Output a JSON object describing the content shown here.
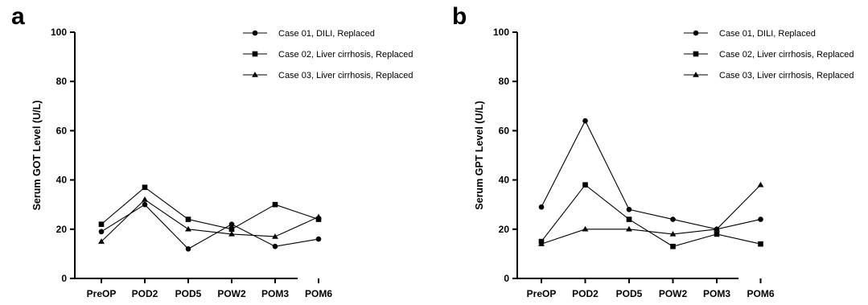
{
  "chart_data": [
    {
      "panel_label": "a",
      "type": "line",
      "title": "",
      "xlabel": "",
      "ylabel": "Serum GOT Level (U/L)",
      "ylim": [
        0,
        100
      ],
      "yticks": [
        0,
        20,
        40,
        60,
        80,
        100
      ],
      "categories": [
        "PreOP",
        "POD2",
        "POD5",
        "POW2",
        "POM3",
        "POM6"
      ],
      "legend_position": "top-right",
      "series": [
        {
          "name": "Case 01, DILI, Replaced",
          "marker": "circle",
          "values": [
            19,
            30,
            12,
            22,
            13,
            16
          ]
        },
        {
          "name": "Case 02, Liver cirrhosis,  Replaced",
          "marker": "square",
          "values": [
            22,
            37,
            24,
            20,
            30,
            24
          ]
        },
        {
          "name": "Case 03, Liver cirrhosis, Replaced",
          "marker": "triangle",
          "values": [
            15,
            32,
            20,
            18,
            17,
            25
          ]
        }
      ]
    },
    {
      "panel_label": "b",
      "type": "line",
      "title": "",
      "xlabel": "",
      "ylabel": "Serum GPT Level (U/L)",
      "ylim": [
        0,
        100
      ],
      "yticks": [
        0,
        20,
        40,
        60,
        80,
        100
      ],
      "categories": [
        "PreOP",
        "POD2",
        "POD5",
        "POW2",
        "POM3",
        "POM6"
      ],
      "legend_position": "top-right",
      "series": [
        {
          "name": "Case 01, DILI, Replaced",
          "marker": "circle",
          "values": [
            29,
            64,
            28,
            24,
            20,
            24
          ]
        },
        {
          "name": "Case 02, Liver cirrhosis,  Replaced",
          "marker": "square",
          "values": [
            15,
            38,
            24,
            13,
            18,
            14
          ]
        },
        {
          "name": "Case 03, Liver cirrhosis, Replaced",
          "marker": "triangle",
          "values": [
            14,
            20,
            20,
            18,
            20,
            38
          ]
        }
      ]
    }
  ]
}
